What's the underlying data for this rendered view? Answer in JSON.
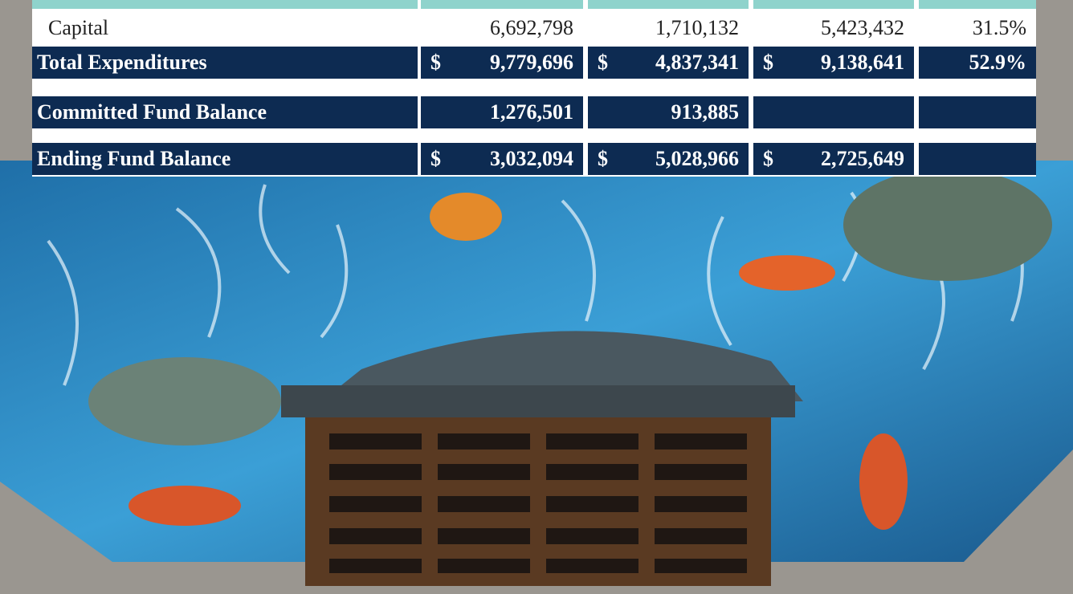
{
  "table": {
    "rows": [
      {
        "label": "Capital",
        "style": "plain",
        "cells": [
          "6,692,798",
          "1,710,132",
          "5,423,432",
          "31.5%"
        ]
      },
      {
        "label": "Total Expenditures",
        "style": "total",
        "cells": [
          {
            "symbol": "$",
            "amount": "9,779,696"
          },
          {
            "symbol": "$",
            "amount": "4,837,341"
          },
          {
            "symbol": "$",
            "amount": "9,138,641"
          },
          "52.9%"
        ]
      },
      {
        "label": "Committed Fund Balance",
        "style": "total",
        "cells": [
          "1,276,501",
          "913,885"
        ]
      },
      {
        "label": "Ending Fund Balance",
        "style": "total",
        "cells": [
          {
            "symbol": "$",
            "amount": "3,032,094"
          },
          {
            "symbol": "$",
            "amount": "5,028,966"
          },
          {
            "symbol": "$",
            "amount": "2,725,649"
          }
        ]
      }
    ]
  }
}
